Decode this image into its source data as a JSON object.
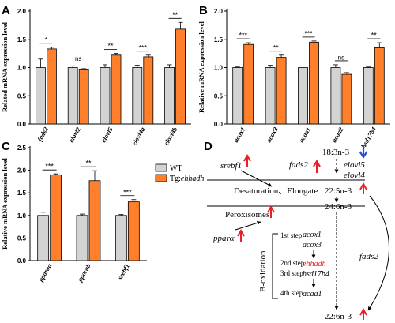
{
  "panels": {
    "A": "A",
    "B": "B",
    "C": "C",
    "D": "D"
  },
  "colors": {
    "wt": "#d3d3d3",
    "tg": "#ff7f2a",
    "axis": "#000000",
    "up_arrow": "#e8202a",
    "down_arrow": "#2b4cd6",
    "highlight": "#e8202a"
  },
  "legend": {
    "wt": "WT",
    "tg_prefix": "Tg:",
    "tg_gene": "ehhadh"
  },
  "chart_data": [
    {
      "panel": "A",
      "type": "bar",
      "ylabel": "Related mRNA expression level",
      "ylim": [
        0,
        2.0
      ],
      "yticks": [
        "0.0",
        "0.5",
        "1.0",
        "1.5",
        "2.0"
      ],
      "categories": [
        "fads2",
        "elovl2",
        "elovl5",
        "elovl4a",
        "elovl4b"
      ],
      "series": [
        {
          "name": "WT",
          "values": [
            1.0,
            1.0,
            1.0,
            1.0,
            1.0
          ],
          "errors": [
            0.15,
            0.03,
            0.05,
            0.04,
            0.05
          ]
        },
        {
          "name": "Tg:ehhadh",
          "values": [
            1.33,
            0.96,
            1.22,
            1.19,
            1.68
          ],
          "errors": [
            0.03,
            0.02,
            0.03,
            0.03,
            0.12
          ]
        }
      ],
      "significance": [
        "*",
        "ns",
        "**",
        "***",
        "**"
      ]
    },
    {
      "panel": "B",
      "type": "bar",
      "ylabel": "Relative mRNA expression level",
      "ylim": [
        0,
        2.0
      ],
      "yticks": [
        "0.0",
        "0.5",
        "1.0",
        "1.5",
        "2.0"
      ],
      "categories": [
        "acox1",
        "acox3",
        "acaa1",
        "acaa2",
        "hsd17b4"
      ],
      "series": [
        {
          "name": "WT",
          "values": [
            1.0,
            1.0,
            1.0,
            1.0,
            1.0
          ],
          "errors": [
            0.01,
            0.04,
            0.03,
            0.05,
            0.01
          ]
        },
        {
          "name": "Tg:ehhadh",
          "values": [
            1.41,
            1.18,
            1.45,
            0.88,
            1.35
          ],
          "errors": [
            0.03,
            0.04,
            0.02,
            0.03,
            0.09
          ]
        }
      ],
      "significance": [
        "***",
        "**",
        "***",
        "ns",
        "**"
      ]
    },
    {
      "panel": "C",
      "type": "bar",
      "ylabel": "Relative mRNA expression level",
      "ylim": [
        0,
        2.5
      ],
      "yticks": [
        "0.0",
        "0.5",
        "1.0",
        "1.5",
        "2.0",
        "2.5"
      ],
      "categories": [
        "pparaa",
        "pparab",
        "srebf1"
      ],
      "series": [
        {
          "name": "WT",
          "values": [
            1.0,
            1.0,
            1.0
          ],
          "errors": [
            0.07,
            0.03,
            0.02
          ]
        },
        {
          "name": "Tg:ehhadh",
          "values": [
            1.9,
            1.77,
            1.3
          ],
          "errors": [
            0.02,
            0.22,
            0.05
          ]
        }
      ],
      "significance": [
        "***",
        "**",
        "***"
      ]
    }
  ],
  "diagram": {
    "top": "18:3n-3",
    "mid": "22:5n-3",
    "c24": "24:6n-3",
    "bottom": "22:6n-3",
    "srebf1": "srebf1",
    "fads2_left": "fads2",
    "elovl5": "elovl5",
    "elovl4": "elovl4",
    "desat": "Desaturation、Elongate",
    "perox": "Peroxisomes",
    "ppara": "pparα",
    "fads2_right": "fads2",
    "boxid": "B-oxidation",
    "step1": "1st step",
    "step2": "2nd step",
    "step3": "3rd step",
    "step4": "4th step",
    "acox1": "acox1",
    "acox3": "acox3",
    "ehhadh": "ehhadh",
    "hsd17b4": "hsd17b4",
    "acaa1": "acaa1"
  }
}
